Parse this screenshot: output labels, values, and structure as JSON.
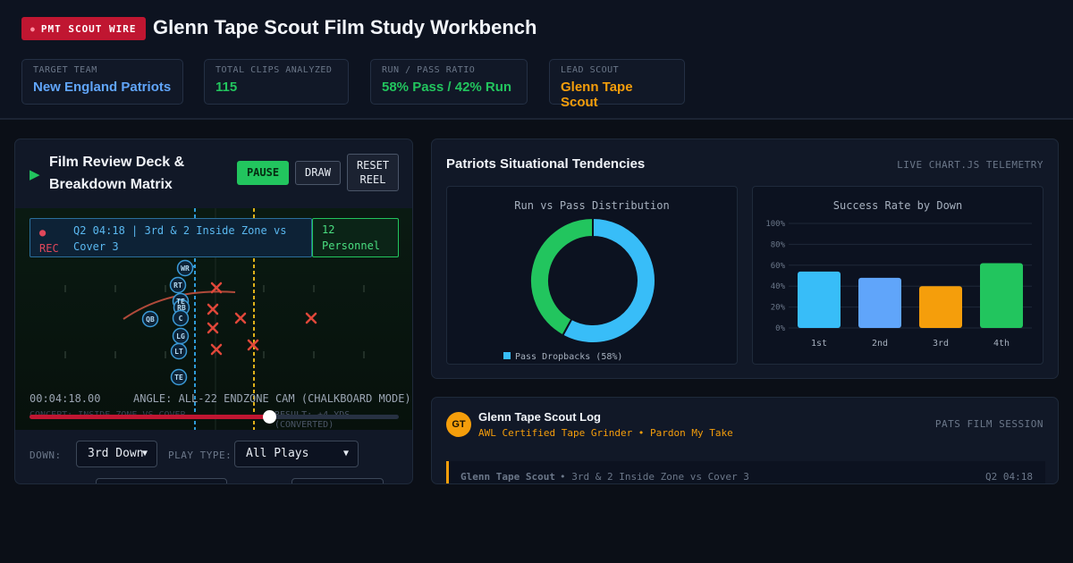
{
  "header": {
    "badge": "PMT SCOUT WIRE",
    "title": "Glenn Tape Scout Film Study Workbench",
    "stats": [
      {
        "label": "TARGET TEAM",
        "value": "New England Patriots",
        "color": "#60a5fa"
      },
      {
        "label": "TOTAL CLIPS ANALYZED",
        "value": "115",
        "color": "#22c55e"
      },
      {
        "label": "RUN / PASS RATIO",
        "value": "58% Pass / 42% Run",
        "color": "#22c55e"
      },
      {
        "label": "LEAD SCOUT",
        "value": "Glenn Tape Scout",
        "color": "#f59e0b"
      }
    ]
  },
  "deck": {
    "title_line1": "Film Review Deck &",
    "title_line2": "Breakdown Matrix",
    "pause_label": "PAUSE",
    "draw_label": "DRAW",
    "reset_line1": "RESET",
    "reset_line2": "REEL",
    "rec_dot": "●",
    "rec_label": "REC",
    "play_desc": "Q2 04:18 | 3rd & 2 Inside Zone vs Cover 3",
    "personnel": "12 Personnel",
    "timecode": "00:04:18.00",
    "angle": "ANGLE: ALL-22 ENDZONE CAM (CHALKBOARD MODE)",
    "ghost_concept": "CONCEPT: INSIDE ZONE VS COVER",
    "ghost_result": "RESULT: +4 YDS (CONVERTED)",
    "scrub_progress": 0.65,
    "players": [
      "WR",
      "RT",
      "TE",
      "RB",
      "C",
      "QB",
      "LG",
      "LT",
      "TE"
    ]
  },
  "filters": {
    "down_label": "DOWN:",
    "down_value": "3rd Down",
    "play_type_label": "PLAY TYPE:",
    "play_type_value": "All Plays"
  },
  "tendencies": {
    "title": "Patriots Situational Tendencies",
    "meta": "LIVE CHART.JS TELEMETRY",
    "legend_label": "Pass Dropbacks (58%)"
  },
  "chart_data": [
    {
      "type": "pie",
      "title": "Run vs Pass Distribution",
      "categories": [
        "Pass Dropbacks",
        "Run"
      ],
      "values": [
        58,
        42
      ],
      "colors": [
        "#38bdf8",
        "#22c55e"
      ]
    },
    {
      "type": "bar",
      "title": "Success Rate by Down",
      "categories": [
        "1st",
        "2nd",
        "3rd",
        "4th"
      ],
      "values": [
        54,
        48,
        40,
        62
      ],
      "colors": [
        "#38bdf8",
        "#60a5fa",
        "#f59e0b",
        "#22c55e"
      ],
      "ylim": [
        0,
        100
      ],
      "yticks": [
        "0%",
        "20%",
        "40%",
        "60%",
        "80%",
        "100%"
      ]
    }
  ],
  "log": {
    "avatar": "GT",
    "name": "Glenn Tape Scout Log",
    "subtitle": "AWL Certified Tape Grinder • Pardon My Take",
    "meta": "PATS FILM SESSION",
    "entry_author": "Glenn Tape Scout",
    "entry_play": "• 3rd & 2 Inside Zone vs Cover 3",
    "entry_time": "Q2 04:18"
  }
}
